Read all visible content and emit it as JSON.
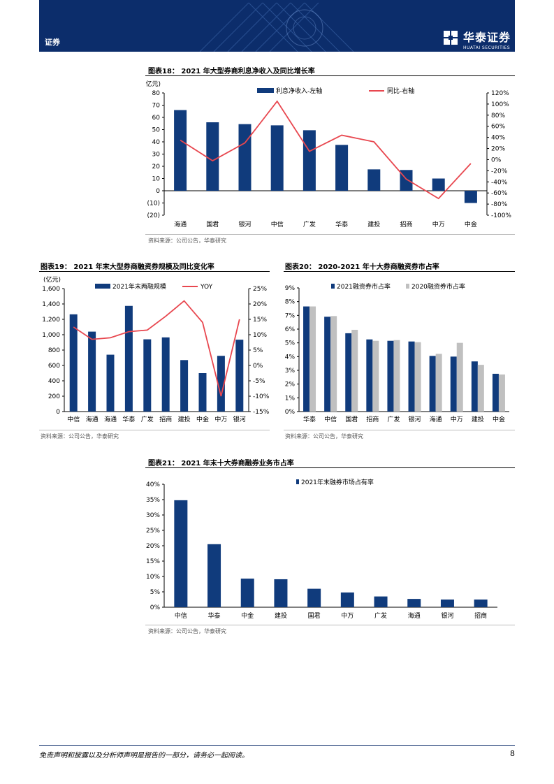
{
  "header": {
    "section": "证券",
    "logo_cn": "华泰证券",
    "logo_en": "HUATAI SECURITIES"
  },
  "colors": {
    "navy": "#0c2d6b",
    "bar_primary": "#103b7c",
    "bar_secondary": "#c0c0c0",
    "line_red": "#e8474f"
  },
  "fig18": {
    "title": "图表18：  2021 年大型券商利息净收入及同比增长率",
    "source": "资料来源：公司公告，华泰研究",
    "chart_data": {
      "type": "bar",
      "unit_label": "(亿元)",
      "categories": [
        "海通",
        "国君",
        "银河",
        "中信",
        "广发",
        "华泰",
        "建投",
        "招商",
        "中万",
        "中金"
      ],
      "series": [
        {
          "name": "利息净收入-左轴",
          "type": "bar",
          "axis": "left",
          "values": [
            66,
            56,
            54.5,
            53.5,
            49.5,
            37.5,
            17.5,
            17,
            10,
            -10
          ]
        },
        {
          "name": "同比-右轴",
          "type": "line",
          "axis": "right",
          "values": [
            35,
            -2,
            30,
            105,
            15,
            44,
            32,
            -35,
            -70,
            -7
          ]
        }
      ],
      "ylim_left": [
        -20,
        80
      ],
      "yticks_left": [
        "80",
        "70",
        "60",
        "50",
        "40",
        "30",
        "20",
        "10",
        "0",
        "(10)",
        "(20)"
      ],
      "ylim_right": [
        -100,
        120
      ],
      "yticks_right": [
        "120%",
        "100%",
        "80%",
        "60%",
        "40%",
        "20%",
        "0%",
        "-20%",
        "-40%",
        "-60%",
        "-80%",
        "-100%"
      ],
      "legend_position": "top"
    }
  },
  "fig19": {
    "title": "图表19：  2021 年末大型券商融资券规模及同比变化率",
    "source": "资料来源：公司公告，华泰研究",
    "chart_data": {
      "type": "bar",
      "unit_label": "(亿元)",
      "categories": [
        "中信",
        "海通",
        "海通",
        "华泰",
        "广发",
        "招商",
        "建投",
        "中金",
        "中万",
        "银河"
      ],
      "series": [
        {
          "name": "2021年末两融规模",
          "type": "bar",
          "axis": "left",
          "values": [
            1265,
            1040,
            740,
            1375,
            940,
            965,
            670,
            500,
            725,
            935
          ]
        },
        {
          "name": "YOY",
          "type": "line",
          "axis": "right",
          "values": [
            12.5,
            8.5,
            9,
            11,
            11.5,
            16,
            21,
            14,
            -10,
            15
          ]
        }
      ],
      "ylim_left": [
        0,
        1600
      ],
      "yticks_left": [
        "1,600",
        "1,400",
        "1,200",
        "1,000",
        "800",
        "600",
        "400",
        "200",
        "0"
      ],
      "ylim_right": [
        -15,
        25
      ],
      "yticks_right": [
        "25%",
        "20%",
        "15%",
        "10%",
        "5%",
        "0%",
        "-5%",
        "-10%",
        "-15%"
      ],
      "legend_position": "top"
    }
  },
  "fig20": {
    "title": "图表20：  2020-2021 年十大券商融资券市占率",
    "source": "资料来源：公司公告，华泰研究",
    "chart_data": {
      "type": "bar",
      "categories": [
        "华泰",
        "中信",
        "国君",
        "招商",
        "广发",
        "银河",
        "海通",
        "中万",
        "建投",
        "中金"
      ],
      "series": [
        {
          "name": "2021融资券市占率",
          "values": [
            7.65,
            6.9,
            5.7,
            5.25,
            5.15,
            5.1,
            4.05,
            4.0,
            3.65,
            2.75
          ]
        },
        {
          "name": "2020融资券市占率",
          "values": [
            7.65,
            6.95,
            5.95,
            5.15,
            5.2,
            5.05,
            4.2,
            5.0,
            3.4,
            2.7
          ]
        }
      ],
      "ylim": [
        0,
        9
      ],
      "yticks": [
        "9%",
        "8%",
        "7%",
        "6%",
        "5%",
        "4%",
        "3%",
        "2%",
        "1%",
        "0%"
      ],
      "legend_position": "top"
    }
  },
  "fig21": {
    "title": "图表21：  2021 年末十大券商融券业务市占率",
    "source": "资料来源：公司公告，华泰研究",
    "chart_data": {
      "type": "bar",
      "categories": [
        "中信",
        "华泰",
        "中金",
        "建投",
        "国君",
        "中万",
        "广发",
        "海通",
        "银河",
        "招商"
      ],
      "series": [
        {
          "name": "2021年末融券市场占有率",
          "values": [
            34.8,
            20.5,
            9.3,
            9.1,
            6.0,
            4.8,
            3.5,
            2.7,
            2.5,
            2.5
          ]
        }
      ],
      "ylim": [
        0,
        40
      ],
      "yticks": [
        "40%",
        "35%",
        "30%",
        "25%",
        "20%",
        "15%",
        "10%",
        "5%",
        "0%"
      ],
      "legend_position": "top-left"
    }
  },
  "footer": {
    "disclaimer": "免责声明和披露以及分析师声明是报告的一部分，请务必一起阅读。",
    "page": "8"
  }
}
